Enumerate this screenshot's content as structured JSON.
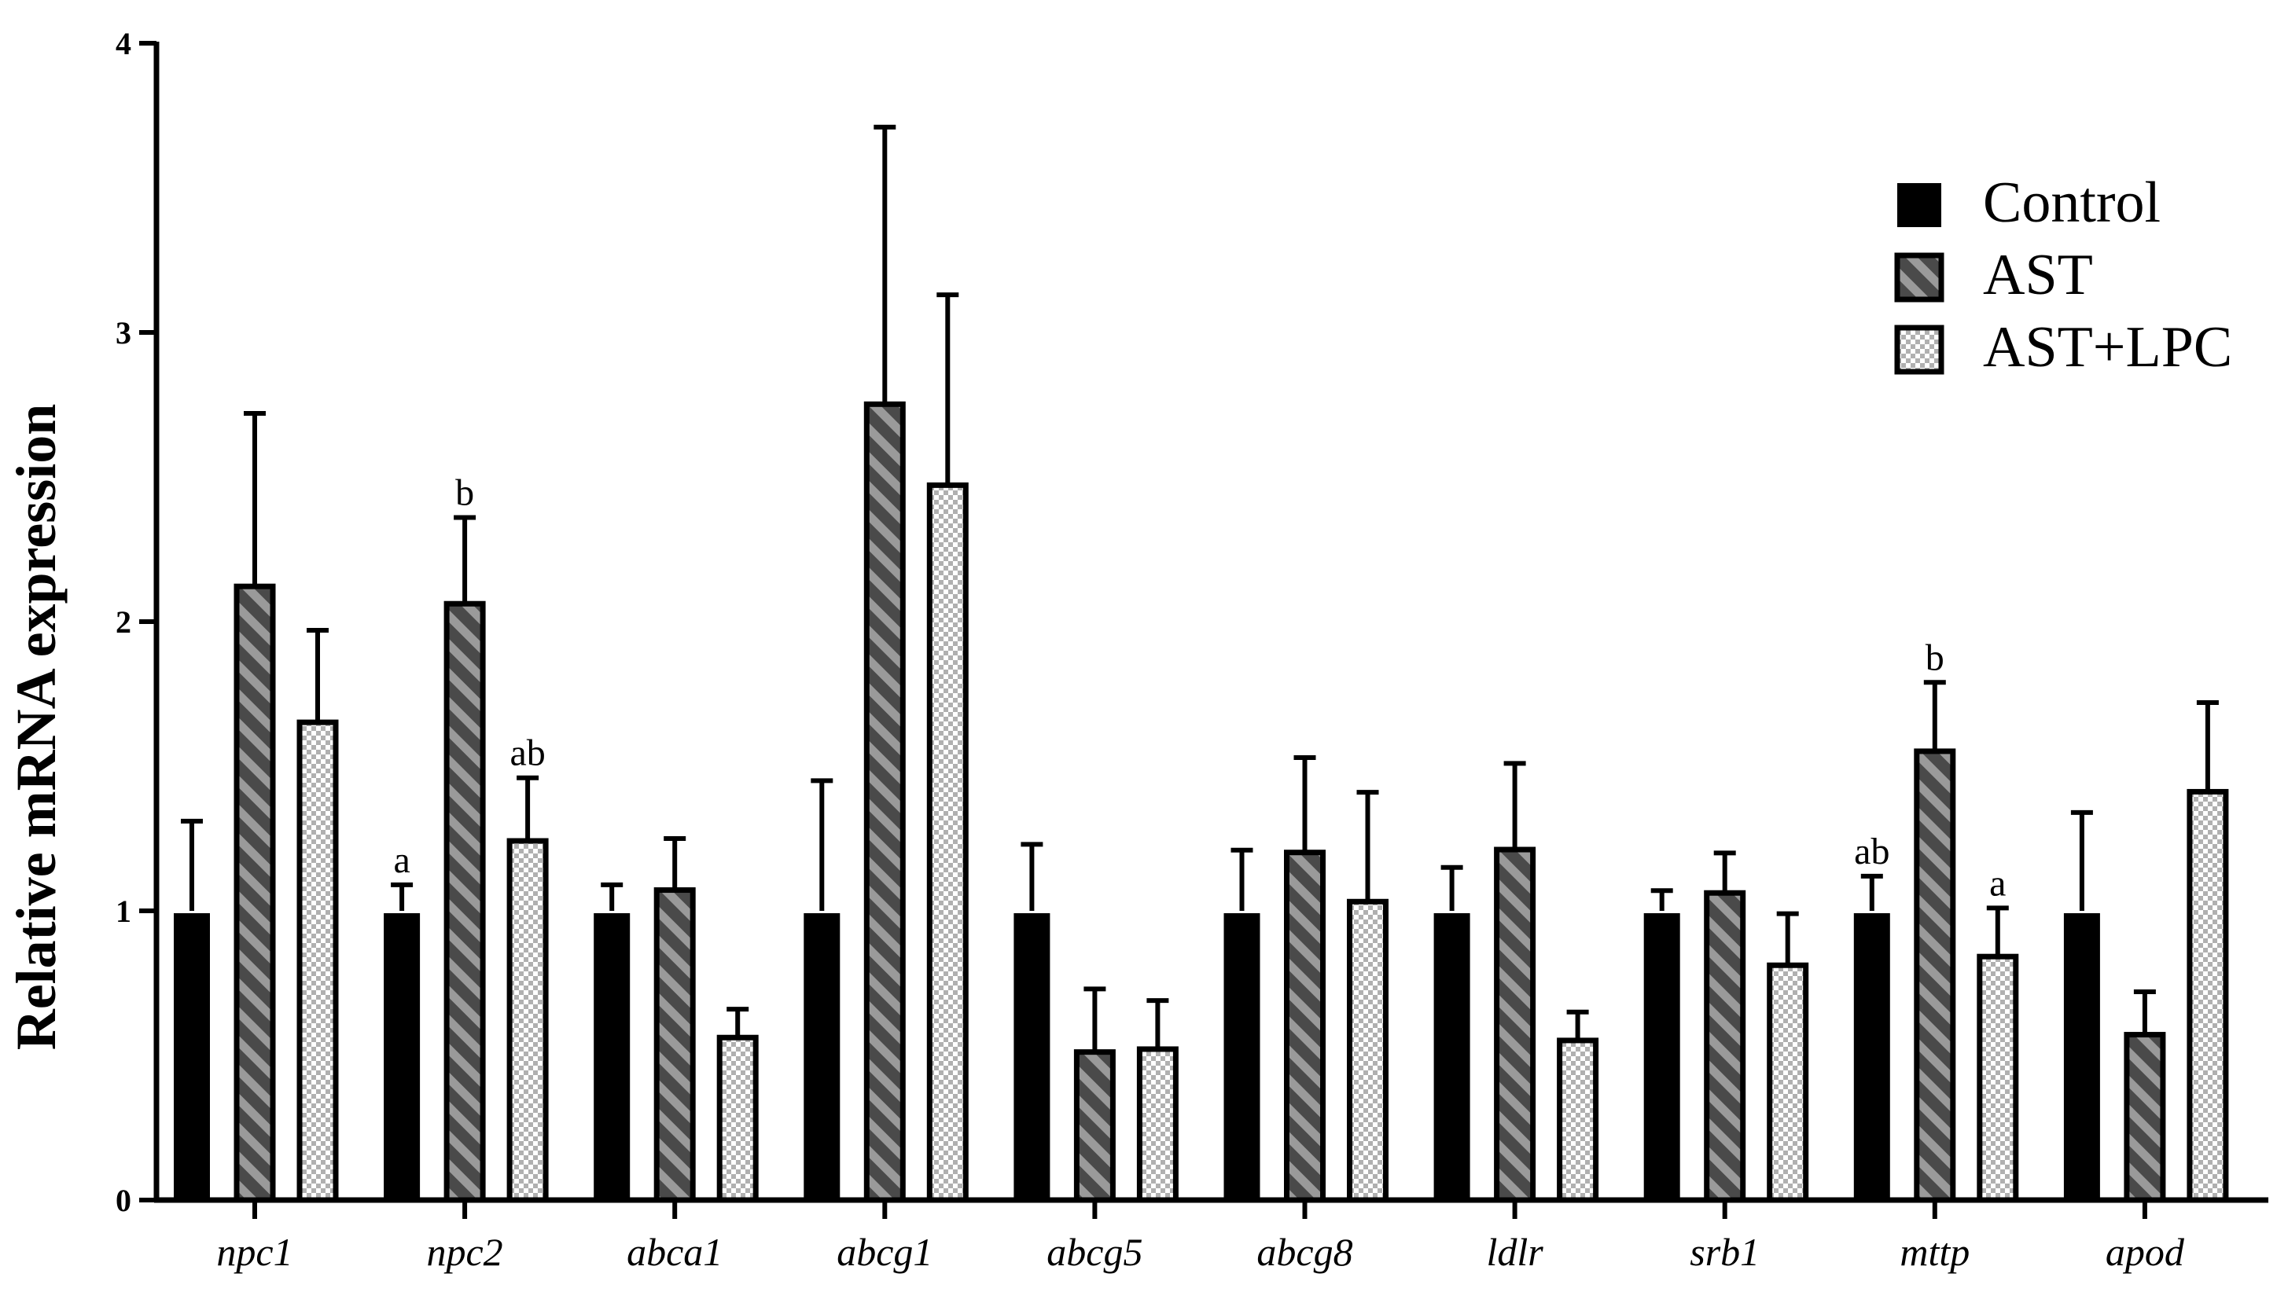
{
  "chart_data": {
    "type": "bar",
    "title": "",
    "xlabel": "",
    "ylabel": "Relative mRNA expression",
    "ylim": [
      0,
      4
    ],
    "yticks": [
      "0",
      "1",
      "2",
      "3",
      "4"
    ],
    "categories": [
      "npc1",
      "npc2",
      "abca1",
      "abcg1",
      "abcg5",
      "abcg8",
      "ldlr",
      "srb1",
      "mttp",
      "apod"
    ],
    "legend_position": "top-right",
    "grid": false,
    "series": [
      {
        "name": "Control",
        "pattern": "solid",
        "color": "#000000",
        "values": [
          1.0,
          1.0,
          1.0,
          1.0,
          1.0,
          1.0,
          1.0,
          1.0,
          1.0,
          1.0
        ],
        "errors": [
          0.31,
          0.09,
          0.09,
          0.45,
          0.23,
          0.21,
          0.15,
          0.07,
          0.12,
          0.34
        ],
        "labels": [
          "",
          "a",
          "",
          "",
          "",
          "",
          "",
          "",
          "ab",
          ""
        ]
      },
      {
        "name": "AST",
        "pattern": "hatched",
        "color": "#555555",
        "values": [
          2.13,
          2.07,
          1.08,
          2.76,
          0.52,
          1.21,
          1.22,
          1.07,
          1.56,
          0.58
        ],
        "errors": [
          0.59,
          0.29,
          0.17,
          0.95,
          0.21,
          0.32,
          0.29,
          0.13,
          0.23,
          0.14
        ],
        "labels": [
          "",
          "b",
          "",
          "",
          "",
          "",
          "",
          "",
          "b",
          ""
        ]
      },
      {
        "name": "AST+LPC",
        "pattern": "dotted",
        "color": "#c8c8c8",
        "values": [
          1.66,
          1.25,
          0.57,
          2.48,
          0.53,
          1.04,
          0.56,
          0.82,
          0.85,
          1.42
        ],
        "errors": [
          0.31,
          0.21,
          0.09,
          0.65,
          0.16,
          0.37,
          0.09,
          0.17,
          0.16,
          0.3
        ],
        "labels": [
          "",
          "ab",
          "",
          "",
          "",
          "",
          "",
          "",
          "a",
          ""
        ]
      }
    ]
  }
}
